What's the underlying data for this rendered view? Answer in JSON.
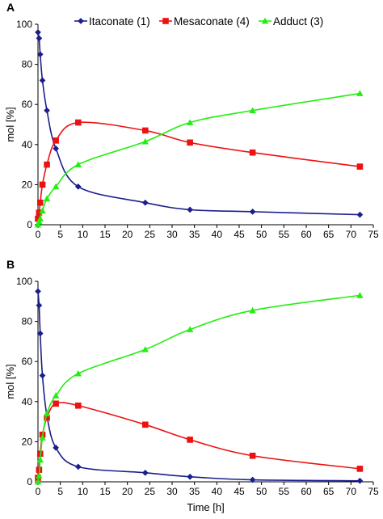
{
  "chart_data": [
    {
      "panel_label": "A",
      "type": "line",
      "xlabel": "",
      "ylabel": "mol [%]",
      "xlim": [
        0,
        75
      ],
      "ylim": [
        0,
        100
      ],
      "xticks": [
        0,
        5,
        10,
        15,
        20,
        25,
        30,
        35,
        40,
        45,
        50,
        55,
        60,
        65,
        70,
        75
      ],
      "yticks": [
        0,
        20,
        40,
        60,
        80,
        100
      ],
      "grid": false,
      "legend": "top",
      "series": [
        {
          "name": "Itaconate (1)",
          "color": "#1a1f8c",
          "marker": "diamond",
          "points": [
            [
              0,
              96
            ],
            [
              0.25,
              93
            ],
            [
              0.5,
              85
            ],
            [
              1,
              72
            ],
            [
              2,
              57
            ],
            [
              4,
              38
            ],
            [
              9,
              19
            ],
            [
              24,
              11
            ],
            [
              34,
              7.5
            ],
            [
              48,
              6.5
            ],
            [
              72,
              5
            ]
          ]
        },
        {
          "name": "Mesaconate (4)",
          "color": "#ee1111",
          "marker": "square",
          "points": [
            [
              0,
              3
            ],
            [
              0.25,
              6
            ],
            [
              0.5,
              11
            ],
            [
              1,
              20
            ],
            [
              2,
              30
            ],
            [
              4,
              42
            ],
            [
              9,
              51
            ],
            [
              24,
              47
            ],
            [
              34,
              41
            ],
            [
              48,
              36
            ],
            [
              72,
              29
            ]
          ]
        },
        {
          "name": "Adduct (3)",
          "color": "#22ee11",
          "marker": "triangle",
          "points": [
            [
              0,
              0
            ],
            [
              0.25,
              1.5
            ],
            [
              0.5,
              3
            ],
            [
              1,
              7
            ],
            [
              2,
              13
            ],
            [
              4,
              19
            ],
            [
              9,
              30
            ],
            [
              24,
              41.5
            ],
            [
              34,
              51
            ],
            [
              48,
              57
            ],
            [
              72,
              65.5
            ]
          ]
        }
      ]
    },
    {
      "panel_label": "B",
      "type": "line",
      "xlabel": "Time [h]",
      "ylabel": "mol [%]",
      "xlim": [
        0,
        75
      ],
      "ylim": [
        0,
        100
      ],
      "xticks": [
        0,
        5,
        10,
        15,
        20,
        25,
        30,
        35,
        40,
        45,
        50,
        55,
        60,
        65,
        70,
        75
      ],
      "yticks": [
        0,
        20,
        40,
        60,
        80,
        100
      ],
      "grid": false,
      "legend": "none",
      "series": [
        {
          "name": "Itaconate (1)",
          "color": "#1a1f8c",
          "marker": "diamond",
          "points": [
            [
              0,
              95
            ],
            [
              0.25,
              88
            ],
            [
              0.5,
              74
            ],
            [
              1,
              53
            ],
            [
              2,
              33
            ],
            [
              4,
              17
            ],
            [
              9,
              7.5
            ],
            [
              24,
              4.5
            ],
            [
              34,
              2.5
            ],
            [
              48,
              1
            ],
            [
              72,
              0.5
            ]
          ]
        },
        {
          "name": "Mesaconate (4)",
          "color": "#ee1111",
          "marker": "square",
          "points": [
            [
              0,
              2
            ],
            [
              0.25,
              6
            ],
            [
              0.5,
              14
            ],
            [
              1,
              23.5
            ],
            [
              2,
              32
            ],
            [
              4,
              39
            ],
            [
              9,
              38
            ],
            [
              24,
              28.5
            ],
            [
              34,
              21
            ],
            [
              48,
              13
            ],
            [
              72,
              6.5
            ]
          ]
        },
        {
          "name": "Adduct (3)",
          "color": "#22ee11",
          "marker": "triangle",
          "points": [
            [
              0,
              0
            ],
            [
              0.25,
              3
            ],
            [
              0.5,
              11
            ],
            [
              1,
              22
            ],
            [
              2,
              34
            ],
            [
              4,
              43
            ],
            [
              9,
              54
            ],
            [
              24,
              66
            ],
            [
              34,
              76
            ],
            [
              48,
              85.5
            ],
            [
              72,
              93
            ]
          ]
        }
      ]
    }
  ]
}
